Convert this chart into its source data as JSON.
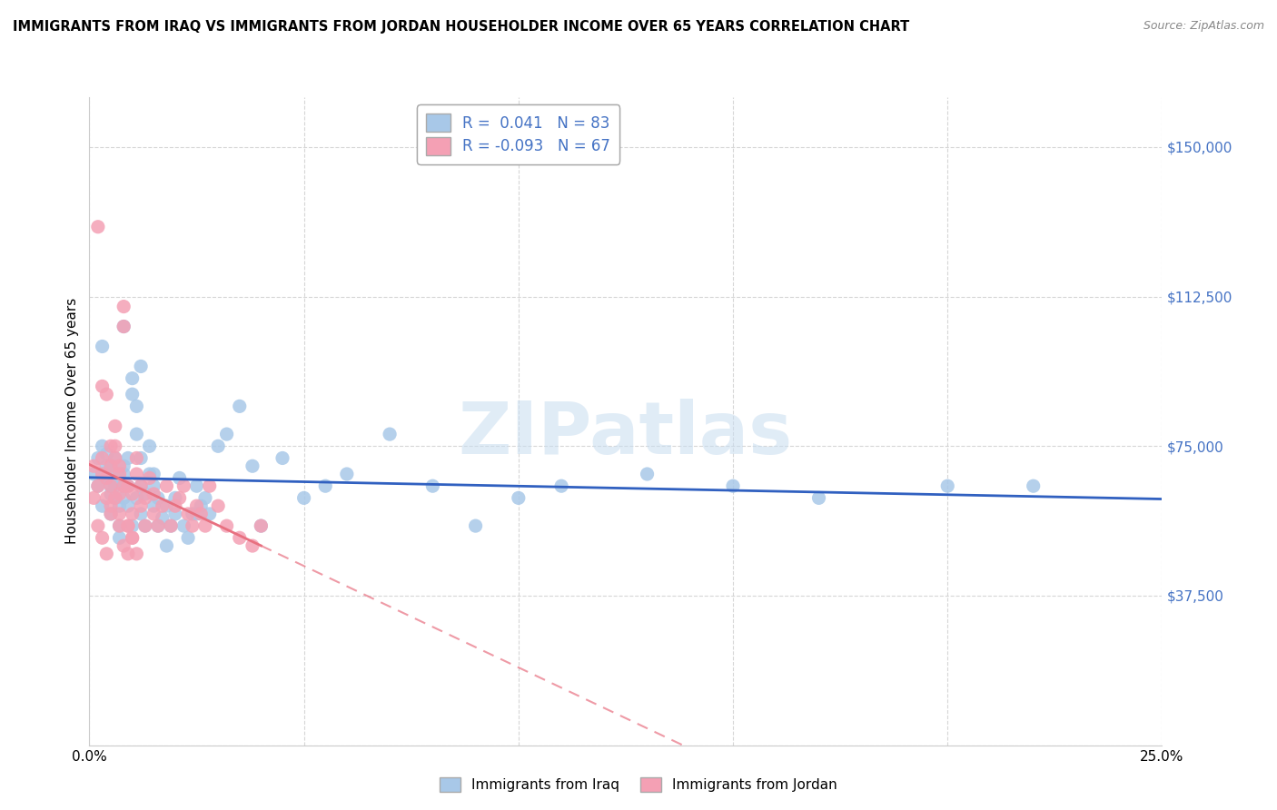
{
  "title": "IMMIGRANTS FROM IRAQ VS IMMIGRANTS FROM JORDAN HOUSEHOLDER INCOME OVER 65 YEARS CORRELATION CHART",
  "source": "Source: ZipAtlas.com",
  "ylabel": "Householder Income Over 65 years",
  "xlim": [
    0.0,
    0.25
  ],
  "ylim": [
    0,
    162500
  ],
  "yticks": [
    0,
    37500,
    75000,
    112500,
    150000
  ],
  "ytick_labels": [
    "",
    "$37,500",
    "$75,000",
    "$112,500",
    "$150,000"
  ],
  "xticks": [
    0.0,
    0.05,
    0.1,
    0.15,
    0.2,
    0.25
  ],
  "xtick_labels": [
    "0.0%",
    "",
    "",
    "",
    "",
    "25.0%"
  ],
  "iraq_color": "#a8c8e8",
  "jordan_color": "#f4a0b4",
  "iraq_line_color": "#3060c0",
  "jordan_line_color": "#e87080",
  "iraq_R": 0.041,
  "iraq_N": 83,
  "jordan_R": -0.093,
  "jordan_N": 67,
  "legend_iraq_label": "Immigrants from Iraq",
  "legend_jordan_label": "Immigrants from Jordan",
  "watermark": "ZIPatlas",
  "grid_color": "#cccccc",
  "title_fontsize": 10.5,
  "source_fontsize": 9,
  "tick_fontsize": 11,
  "iraq_scatter_x": [
    0.001,
    0.002,
    0.002,
    0.003,
    0.003,
    0.003,
    0.004,
    0.004,
    0.004,
    0.005,
    0.005,
    0.005,
    0.005,
    0.006,
    0.006,
    0.006,
    0.006,
    0.007,
    0.007,
    0.007,
    0.007,
    0.008,
    0.008,
    0.008,
    0.008,
    0.009,
    0.009,
    0.009,
    0.01,
    0.01,
    0.01,
    0.011,
    0.011,
    0.011,
    0.012,
    0.012,
    0.012,
    0.013,
    0.013,
    0.014,
    0.014,
    0.015,
    0.015,
    0.016,
    0.016,
    0.017,
    0.018,
    0.018,
    0.019,
    0.02,
    0.021,
    0.022,
    0.023,
    0.024,
    0.025,
    0.026,
    0.027,
    0.028,
    0.03,
    0.032,
    0.035,
    0.038,
    0.04,
    0.045,
    0.05,
    0.055,
    0.06,
    0.07,
    0.08,
    0.09,
    0.1,
    0.11,
    0.13,
    0.15,
    0.17,
    0.2,
    0.22,
    0.003,
    0.008,
    0.012,
    0.015,
    0.02,
    0.025
  ],
  "iraq_scatter_y": [
    68000,
    65000,
    72000,
    60000,
    75000,
    68000,
    70000,
    67000,
    73000,
    65000,
    58000,
    63000,
    70000,
    62000,
    68000,
    72000,
    65000,
    55000,
    60000,
    67000,
    52000,
    65000,
    70000,
    62000,
    68000,
    60000,
    65000,
    72000,
    55000,
    88000,
    92000,
    85000,
    78000,
    62000,
    58000,
    65000,
    72000,
    55000,
    63000,
    68000,
    75000,
    60000,
    65000,
    55000,
    62000,
    57000,
    50000,
    60000,
    55000,
    58000,
    67000,
    55000,
    52000,
    58000,
    65000,
    60000,
    62000,
    58000,
    75000,
    78000,
    85000,
    70000,
    55000,
    72000,
    62000,
    65000,
    68000,
    78000,
    65000,
    55000,
    62000,
    65000,
    68000,
    65000,
    62000,
    65000,
    65000,
    100000,
    105000,
    95000,
    68000,
    62000,
    58000
  ],
  "jordan_scatter_x": [
    0.001,
    0.002,
    0.002,
    0.003,
    0.003,
    0.004,
    0.004,
    0.005,
    0.005,
    0.005,
    0.006,
    0.006,
    0.007,
    0.007,
    0.007,
    0.008,
    0.008,
    0.009,
    0.009,
    0.01,
    0.01,
    0.011,
    0.011,
    0.012,
    0.012,
    0.013,
    0.013,
    0.014,
    0.015,
    0.015,
    0.016,
    0.017,
    0.018,
    0.019,
    0.02,
    0.021,
    0.022,
    0.023,
    0.024,
    0.025,
    0.026,
    0.027,
    0.028,
    0.03,
    0.032,
    0.035,
    0.038,
    0.04,
    0.001,
    0.002,
    0.003,
    0.004,
    0.005,
    0.006,
    0.007,
    0.008,
    0.009,
    0.01,
    0.003,
    0.004,
    0.005,
    0.006,
    0.007,
    0.008,
    0.009,
    0.01,
    0.011
  ],
  "jordan_scatter_y": [
    70000,
    65000,
    130000,
    68000,
    72000,
    62000,
    67000,
    60000,
    65000,
    70000,
    75000,
    80000,
    58000,
    63000,
    68000,
    105000,
    110000,
    55000,
    65000,
    58000,
    63000,
    68000,
    72000,
    60000,
    65000,
    55000,
    62000,
    67000,
    58000,
    63000,
    55000,
    60000,
    65000,
    55000,
    60000,
    62000,
    65000,
    58000,
    55000,
    60000,
    58000,
    55000,
    65000,
    60000,
    55000,
    52000,
    50000,
    55000,
    62000,
    55000,
    52000,
    48000,
    58000,
    62000,
    55000,
    50000,
    48000,
    52000,
    90000,
    88000,
    75000,
    72000,
    70000,
    65000,
    55000,
    52000,
    48000
  ]
}
